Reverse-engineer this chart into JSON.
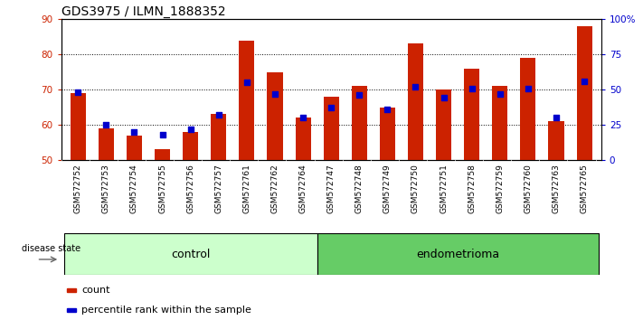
{
  "title": "GDS3975 / ILMN_1888352",
  "samples": [
    "GSM572752",
    "GSM572753",
    "GSM572754",
    "GSM572755",
    "GSM572756",
    "GSM572757",
    "GSM572761",
    "GSM572762",
    "GSM572764",
    "GSM572747",
    "GSM572748",
    "GSM572749",
    "GSM572750",
    "GSM572751",
    "GSM572758",
    "GSM572759",
    "GSM572760",
    "GSM572763",
    "GSM572765"
  ],
  "count_values": [
    69,
    59,
    57,
    53,
    58,
    63,
    84,
    75,
    62,
    68,
    71,
    65,
    83,
    70,
    76,
    71,
    79,
    61,
    88
  ],
  "pct_all": [
    48,
    25,
    20,
    18,
    22,
    32,
    55,
    47,
    30,
    37,
    46,
    36,
    52,
    44,
    51,
    47,
    51,
    30,
    56
  ],
  "n_control": 9,
  "n_endometrioma": 10,
  "ylim_left": [
    50,
    90
  ],
  "yticks_left": [
    50,
    60,
    70,
    80,
    90
  ],
  "ylim_right": [
    0,
    100
  ],
  "yticks_right": [
    0,
    25,
    50,
    75,
    100
  ],
  "bar_color": "#CC2200",
  "dot_color": "#0000CC",
  "control_bg": "#CCFFCC",
  "endometrioma_bg": "#66CC66",
  "xlabel_bg": "#CCCCCC",
  "title_fontsize": 10,
  "label_fontsize": 6.5,
  "tick_fontsize": 7.5,
  "group_fontsize": 9,
  "legend_fontsize": 8
}
